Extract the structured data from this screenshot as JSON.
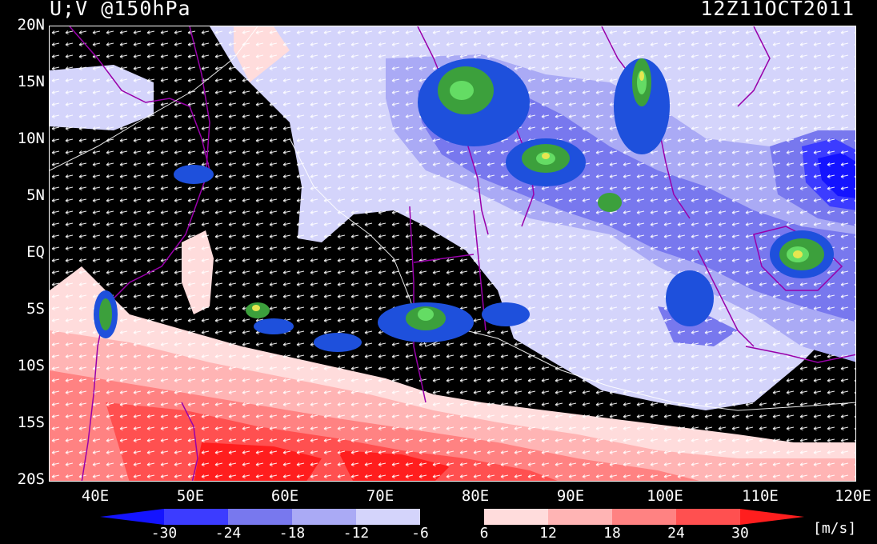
{
  "header": {
    "title_left": "U;V @150hPa",
    "title_right": "12Z11OCT2011"
  },
  "axes": {
    "lat_labels": [
      "20N",
      "15N",
      "10N",
      "5N",
      "EQ",
      "5S",
      "10S",
      "15S",
      "20S"
    ],
    "lon_labels": [
      "40E",
      "50E",
      "60E",
      "70E",
      "80E",
      "90E",
      "100E",
      "110E",
      "120E"
    ]
  },
  "colorbar": {
    "labels": [
      "-30",
      "-24",
      "-18",
      "-12",
      "-6",
      "6",
      "12",
      "18",
      "24",
      "30"
    ],
    "units": "[m/s]",
    "colors": {
      "lt_neg30": "#1414ff",
      "neg30_neg24": "#3c3cff",
      "neg24_neg18": "#7878ee",
      "neg18_neg12": "#aaaaf5",
      "neg12_neg6": "#d4d4fb",
      "neg6_6": "#000000",
      "p6_12": "#ffdcdc",
      "p12_18": "#ffb4b4",
      "p18_24": "#ff8282",
      "p24_30": "#ff5050",
      "gt30": "#ff1e1e"
    }
  },
  "map": {
    "extent": {
      "lon": [
        35,
        120
      ],
      "lat": [
        -20,
        20
      ]
    },
    "vector_color": "#ffffff",
    "coastline_color": "#9900aa",
    "convection_colors": [
      "#1e50dc",
      "#3ca03c",
      "#64dc64",
      "#e6e650"
    ]
  }
}
